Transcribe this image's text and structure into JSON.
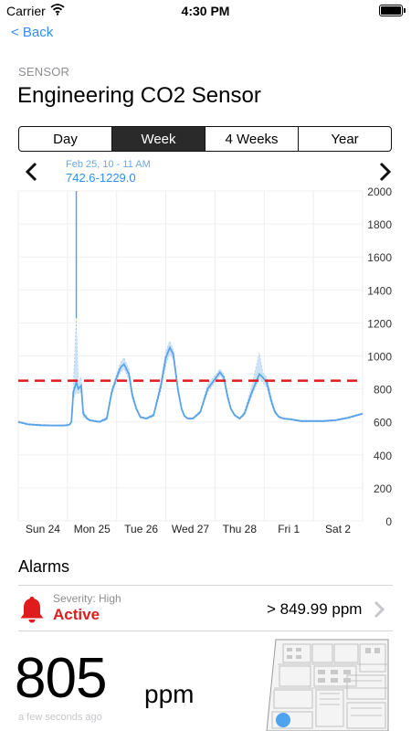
{
  "status": {
    "carrier": "Carrier",
    "time": "4:30 PM"
  },
  "nav": {
    "back_label": "< Back"
  },
  "header": {
    "section_label": "SENSOR",
    "title": "Engineering CO2 Sensor"
  },
  "range_tabs": [
    {
      "label": "Day",
      "active": false
    },
    {
      "label": "Week",
      "active": true
    },
    {
      "label": "4 Weeks",
      "active": false
    },
    {
      "label": "Year",
      "active": false
    }
  ],
  "tooltip": {
    "date": "Feb 25, 10 - 11 AM",
    "range": "742.6-1229.0"
  },
  "chart_data": {
    "type": "area",
    "title": "",
    "xlabel": "",
    "ylabel": "",
    "ylim": [
      0,
      2000
    ],
    "yticks": [
      0,
      200,
      400,
      600,
      800,
      1000,
      1200,
      1400,
      1600,
      1800,
      2000
    ],
    "x_tick_labels": [
      "Sun 24",
      "Mon 25",
      "Tue 26",
      "Wed 27",
      "Thu 28",
      "Fri 1",
      "Sat 2"
    ],
    "x_range_days": [
      0,
      7
    ],
    "threshold": 850,
    "grid": true,
    "colors": {
      "line": "#5ba3e8",
      "band": "#cfe3f7",
      "threshold": "#e01b1b"
    },
    "series": [
      {
        "t": [
          0,
          0.2,
          0.45,
          0.7,
          0.9,
          1.0,
          1.05,
          1.08,
          1.12,
          1.18,
          1.22,
          1.28,
          1.32,
          1.4,
          1.45,
          1.55,
          1.65,
          1.8,
          1.9,
          2.0,
          2.08,
          2.15,
          2.25,
          2.32,
          2.4,
          2.48,
          2.6,
          2.75,
          2.9,
          3.0,
          3.08,
          3.15,
          3.25,
          3.32,
          3.38,
          3.45,
          3.55,
          3.7,
          3.85,
          4.0,
          4.1,
          4.18,
          4.25,
          4.32,
          4.4,
          4.5,
          4.6,
          4.75,
          4.9,
          4.97,
          5.05,
          5.15,
          5.22,
          5.3,
          5.4,
          5.55,
          5.75,
          6.0,
          6.2,
          6.45,
          6.7,
          7.0
        ],
        "mean": [
          600,
          585,
          580,
          578,
          578,
          580,
          585,
          600,
          780,
          840,
          800,
          820,
          650,
          620,
          610,
          605,
          600,
          620,
          780,
          870,
          930,
          950,
          890,
          760,
          680,
          630,
          620,
          640,
          820,
          990,
          1050,
          1010,
          790,
          680,
          635,
          620,
          620,
          660,
          800,
          860,
          900,
          870,
          760,
          680,
          640,
          620,
          650,
          780,
          890,
          870,
          840,
          720,
          660,
          630,
          620,
          615,
          605,
          605,
          605,
          610,
          625,
          650
        ],
        "min": [
          595,
          580,
          575,
          575,
          575,
          578,
          582,
          595,
          740,
          780,
          770,
          780,
          630,
          615,
          605,
          600,
          595,
          610,
          760,
          850,
          900,
          920,
          860,
          740,
          670,
          625,
          615,
          630,
          790,
          950,
          1010,
          980,
          770,
          670,
          630,
          615,
          615,
          650,
          780,
          840,
          880,
          850,
          740,
          670,
          635,
          615,
          640,
          760,
          860,
          840,
          810,
          700,
          650,
          625,
          615,
          610,
          600,
          600,
          600,
          605,
          620,
          645
        ],
        "max": [
          605,
          590,
          585,
          582,
          582,
          585,
          590,
          610,
          820,
          1229,
          850,
          870,
          670,
          630,
          615,
          610,
          605,
          630,
          800,
          890,
          960,
          990,
          920,
          780,
          690,
          635,
          625,
          650,
          850,
          1030,
          1090,
          1040,
          810,
          690,
          640,
          625,
          625,
          670,
          830,
          880,
          920,
          890,
          780,
          690,
          645,
          625,
          665,
          820,
          1020,
          900,
          870,
          740,
          670,
          635,
          625,
          620,
          610,
          610,
          610,
          615,
          630,
          655
        ]
      }
    ]
  },
  "alarms": {
    "section_title": "Alarms",
    "items": [
      {
        "severity": "Severity: High",
        "state": "Active",
        "threshold": "> 849.99 ppm"
      }
    ]
  },
  "current": {
    "value": "805",
    "unit": "ppm",
    "updated": "a few seconds ago"
  }
}
